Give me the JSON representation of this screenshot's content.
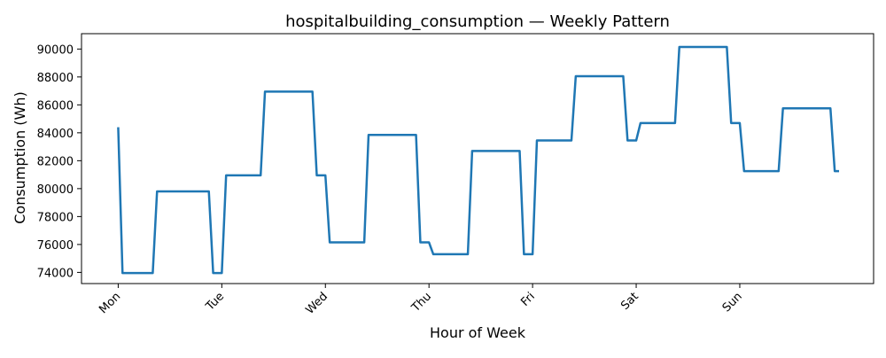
{
  "chart_data": {
    "type": "line",
    "title": "hospitalbuilding_consumption — Weekly Pattern",
    "xlabel": "Hour of Week",
    "ylabel": "Consumption (Wh)",
    "x_ticks": [
      {
        "label": "Mon",
        "hour": 0
      },
      {
        "label": "Tue",
        "hour": 24
      },
      {
        "label": "Wed",
        "hour": 48
      },
      {
        "label": "Thu",
        "hour": 72
      },
      {
        "label": "Fri",
        "hour": 96
      },
      {
        "label": "Sat",
        "hour": 120
      },
      {
        "label": "Sun",
        "hour": 144
      }
    ],
    "y_ticks": [
      74000,
      76000,
      78000,
      80000,
      82000,
      84000,
      86000,
      88000,
      90000
    ],
    "xlim": [
      -8.5,
      175
    ],
    "ylim": [
      73200,
      91100
    ],
    "grid": false,
    "line_color": "#1f77b4",
    "series": [
      {
        "name": "",
        "x": [
          0,
          1,
          2,
          3,
          4,
          5,
          6,
          7,
          8,
          9,
          10,
          11,
          12,
          13,
          14,
          15,
          16,
          17,
          18,
          19,
          20,
          21,
          22,
          23,
          24,
          25,
          26,
          27,
          28,
          29,
          30,
          31,
          32,
          33,
          34,
          35,
          36,
          37,
          38,
          39,
          40,
          41,
          42,
          43,
          44,
          45,
          46,
          47,
          48,
          49,
          50,
          51,
          52,
          53,
          54,
          55,
          56,
          57,
          58,
          59,
          60,
          61,
          62,
          63,
          64,
          65,
          66,
          67,
          68,
          69,
          70,
          71,
          72,
          73,
          74,
          75,
          76,
          77,
          78,
          79,
          80,
          81,
          82,
          83,
          84,
          85,
          86,
          87,
          88,
          89,
          90,
          91,
          92,
          93,
          94,
          95,
          96,
          97,
          98,
          99,
          100,
          101,
          102,
          103,
          104,
          105,
          106,
          107,
          108,
          109,
          110,
          111,
          112,
          113,
          114,
          115,
          116,
          117,
          118,
          119,
          120,
          121,
          122,
          123,
          124,
          125,
          126,
          127,
          128,
          129,
          130,
          131,
          132,
          133,
          134,
          135,
          136,
          137,
          138,
          139,
          140,
          141,
          142,
          143,
          144,
          145,
          146,
          147,
          148,
          149,
          150,
          151,
          152,
          153,
          154,
          155,
          156,
          157,
          158,
          159,
          160,
          161,
          162,
          163,
          164,
          165,
          166,
          167
        ],
        "y": [
          84400,
          73950,
          73950,
          73950,
          73950,
          73950,
          73950,
          73950,
          73950,
          79800,
          79800,
          79800,
          79800,
          79800,
          79800,
          79800,
          79800,
          79800,
          79800,
          79800,
          79800,
          79800,
          73950,
          73950,
          73950,
          80950,
          80950,
          80950,
          80950,
          80950,
          80950,
          80950,
          80950,
          80950,
          86950,
          86950,
          86950,
          86950,
          86950,
          86950,
          86950,
          86950,
          86950,
          86950,
          86950,
          86950,
          80950,
          80950,
          80950,
          76150,
          76150,
          76150,
          76150,
          76150,
          76150,
          76150,
          76150,
          76150,
          83850,
          83850,
          83850,
          83850,
          83850,
          83850,
          83850,
          83850,
          83850,
          83850,
          83850,
          83850,
          76150,
          76150,
          76150,
          75300,
          75300,
          75300,
          75300,
          75300,
          75300,
          75300,
          75300,
          75300,
          82700,
          82700,
          82700,
          82700,
          82700,
          82700,
          82700,
          82700,
          82700,
          82700,
          82700,
          82700,
          75300,
          75300,
          75300,
          83450,
          83450,
          83450,
          83450,
          83450,
          83450,
          83450,
          83450,
          83450,
          88050,
          88050,
          88050,
          88050,
          88050,
          88050,
          88050,
          88050,
          88050,
          88050,
          88050,
          88050,
          83450,
          83450,
          83450,
          84700,
          84700,
          84700,
          84700,
          84700,
          84700,
          84700,
          84700,
          84700,
          90150,
          90150,
          90150,
          90150,
          90150,
          90150,
          90150,
          90150,
          90150,
          90150,
          90150,
          90150,
          84700,
          84700,
          84700,
          81250,
          81250,
          81250,
          81250,
          81250,
          81250,
          81250,
          81250,
          81250,
          85750,
          85750,
          85750,
          85750,
          85750,
          85750,
          85750,
          85750,
          85750,
          85750,
          85750,
          85750,
          81250,
          81250
        ]
      }
    ]
  }
}
